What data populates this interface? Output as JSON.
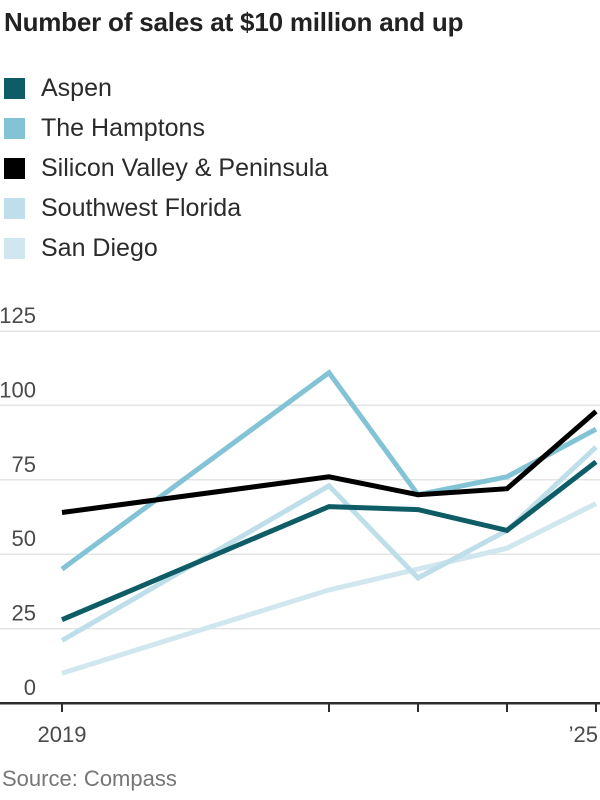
{
  "title": "Number of sales at $10 million and up",
  "source": "Source: Compass",
  "chart_data": {
    "type": "line",
    "x": [
      2019,
      2022,
      2023,
      2024,
      2025
    ],
    "x_range": [
      2019,
      2025
    ],
    "x_tick_labels": [
      {
        "label": "2019",
        "year": 2019,
        "align": "middle"
      },
      {
        "label": "’25",
        "year": 2025,
        "align": "end"
      }
    ],
    "series": [
      {
        "name": "Aspen",
        "color": "#0d5c66",
        "values": [
          28,
          66,
          65,
          58,
          81
        ]
      },
      {
        "name": "The Hamptons",
        "color": "#82c3d5",
        "values": [
          45,
          111,
          70,
          76,
          92
        ]
      },
      {
        "name": "Silicon Valley & Peninsula",
        "color": "#000000",
        "values": [
          64,
          76,
          70,
          72,
          98
        ]
      },
      {
        "name": "Southwest Florida",
        "color": "#bedfe9",
        "values": [
          21,
          73,
          42,
          58,
          86
        ]
      },
      {
        "name": "San Diego",
        "color": "#d0e7ef",
        "values": [
          10,
          38,
          45,
          52,
          67
        ]
      }
    ],
    "title": "Number of sales at $10 million and up",
    "xlabel": "",
    "ylabel": "",
    "ylim": [
      0,
      125
    ],
    "yticks": [
      0,
      25,
      50,
      75,
      100,
      125
    ],
    "grid": true,
    "legend_position": "top-left",
    "grid_color": "#e4e4e4",
    "axis_color": "#2d2d2d",
    "tick_label_color": "#4a4a4a"
  }
}
